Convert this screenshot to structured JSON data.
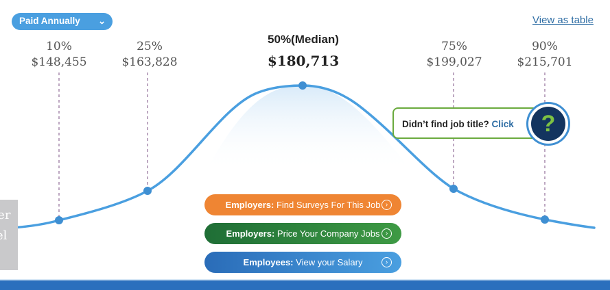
{
  "pay_period": {
    "selected": "Paid Annually"
  },
  "view_link": "View as table",
  "percentiles": [
    {
      "label": "10%",
      "value": "$148,455"
    },
    {
      "label": "25%",
      "value": "$163,828"
    },
    {
      "label": "50%(Median)",
      "value": "$180,713"
    },
    {
      "label": "75%",
      "value": "$199,027"
    },
    {
      "label": "90%",
      "value": "$215,701"
    }
  ],
  "side_tab": {
    "line1": "ver",
    "line2": "el"
  },
  "help": {
    "text": "Didn’t find job title?",
    "link": "Click",
    "icon_text": "?"
  },
  "actions": [
    {
      "who": "Employers:",
      "text": "Find Surveys For This Job"
    },
    {
      "who": "Employers:",
      "text": "Price Your Company Jobs"
    },
    {
      "who": "Employees:",
      "text": "View your Salary"
    }
  ],
  "colors": {
    "curve": "#4a9fe0",
    "orange": "#ef8533",
    "green": "#2e8a3e",
    "blue": "#2b6fbd",
    "help_border": "#6aaa3d"
  }
}
